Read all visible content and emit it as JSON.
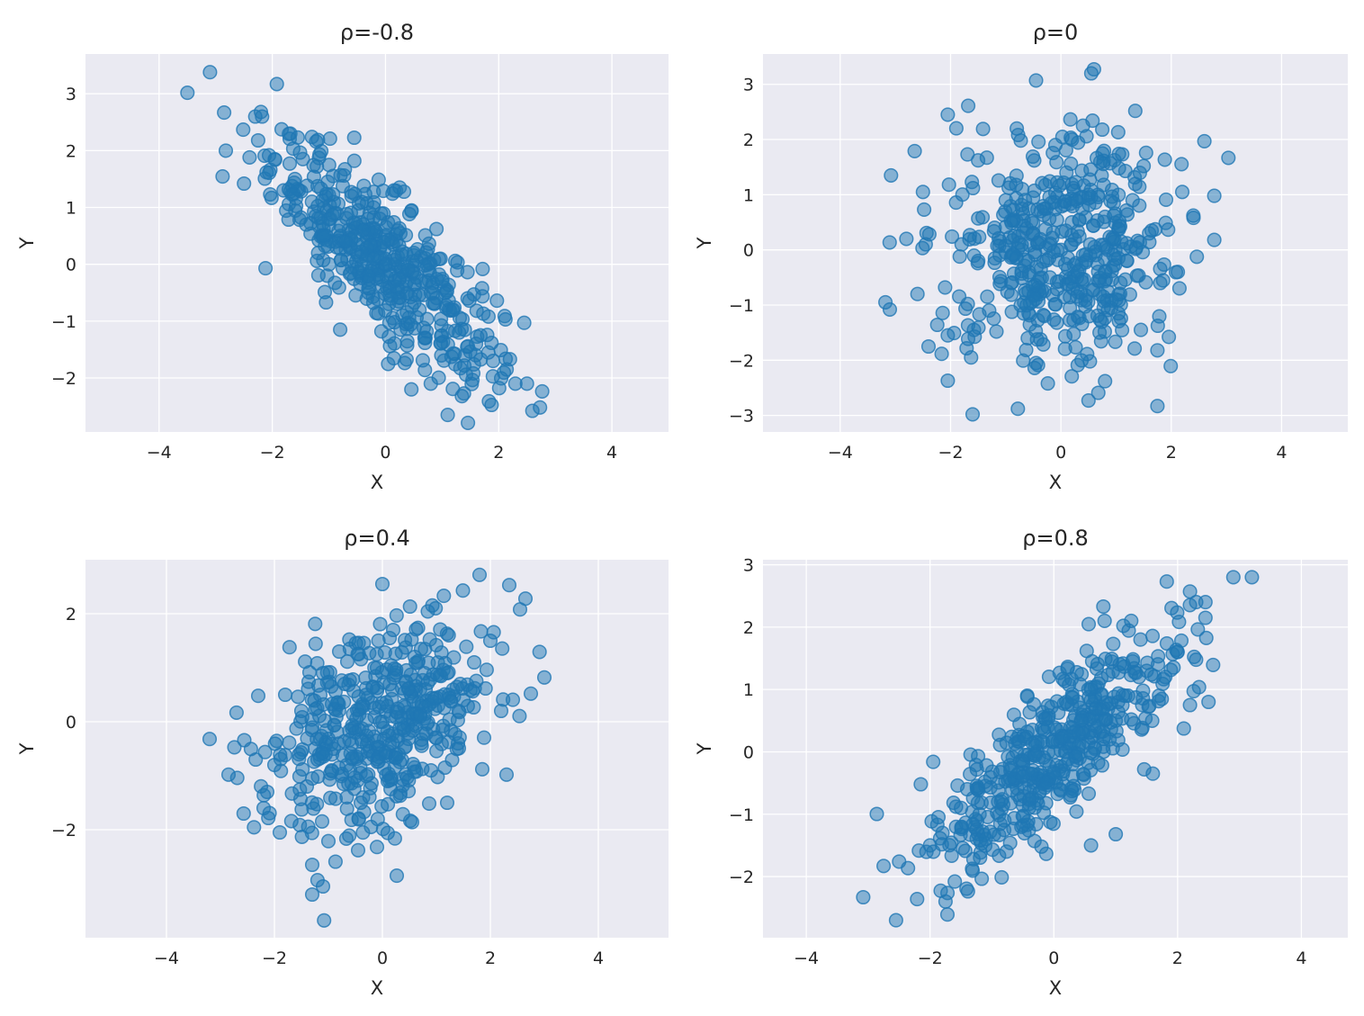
{
  "chart_data": [
    {
      "type": "scatter",
      "title": "ρ=-0.8",
      "xlabel": "X",
      "ylabel": "Y",
      "xlim": [
        -5.3,
        5.0
      ],
      "ylim": [
        -2.95,
        3.7
      ],
      "xticks": [
        -4,
        -2,
        0,
        2,
        4
      ],
      "yticks": [
        -2,
        -1,
        0,
        1,
        2,
        3
      ],
      "grid": true,
      "color": "#1f77b4",
      "rho": -0.8,
      "points": [
        [
          -3.1,
          3.38
        ],
        [
          -2.85,
          2.67
        ],
        [
          -2.2,
          2.68
        ],
        [
          -2.18,
          2.6
        ],
        [
          -2.3,
          2.6
        ],
        [
          -2.82,
          2.0
        ],
        [
          -2.5,
          1.42
        ],
        [
          -2.4,
          1.88
        ],
        [
          -2.25,
          2.18
        ],
        [
          -2.1,
          1.62
        ],
        [
          -1.95,
          1.84
        ],
        [
          -1.68,
          2.3
        ],
        [
          -1.55,
          2.23
        ],
        [
          -1.3,
          2.24
        ],
        [
          -0.98,
          2.21
        ],
        [
          -0.55,
          1.82
        ],
        [
          -2.12,
          -0.07
        ],
        [
          -1.05,
          -0.67
        ],
        [
          -0.8,
          -1.15
        ],
        [
          1.1,
          -2.65
        ],
        [
          1.35,
          -2.32
        ],
        [
          1.55,
          -1.92
        ],
        [
          2.2,
          -1.67
        ],
        [
          2.5,
          -2.1
        ],
        [
          2.73,
          -2.52
        ],
        [
          2.45,
          -1.03
        ],
        [
          2.12,
          -0.97
        ],
        [
          1.82,
          -0.92
        ],
        [
          0.8,
          -2.1
        ],
        [
          0.15,
          1.3
        ],
        [
          0.25,
          1.35
        ],
        [
          0.9,
          0.62
        ],
        [
          -0.5,
          0.35
        ],
        [
          0.2,
          -0.4
        ],
        [
          -0.2,
          0.1
        ],
        [
          0.6,
          -0.8
        ],
        [
          -0.9,
          0.9
        ],
        [
          1.3,
          -1.2
        ],
        [
          -1.3,
          1.1
        ],
        [
          0.4,
          -0.1
        ],
        [
          -0.4,
          0.6
        ],
        [
          0.8,
          -0.5
        ],
        [
          1.6,
          -1.4
        ],
        [
          -1.6,
          1.5
        ],
        [
          0.0,
          0.0
        ],
        [
          -0.7,
          0.4
        ],
        [
          0.3,
          -0.9
        ],
        [
          1.0,
          -0.3
        ],
        [
          -1.1,
          0.5
        ],
        [
          0.5,
          0.2
        ],
        [
          1.9,
          -1.7
        ],
        [
          -1.8,
          1.3
        ],
        [
          0.1,
          -0.6
        ],
        [
          -0.3,
          -0.2
        ],
        [
          1.2,
          -0.8
        ],
        [
          -0.1,
          0.8
        ],
        [
          0.7,
          -1.3
        ],
        [
          -0.6,
          1.2
        ],
        [
          1.45,
          -0.6
        ],
        [
          -1.4,
          0.7
        ]
      ]
    },
    {
      "type": "scatter",
      "title": "ρ=0",
      "xlabel": "X",
      "ylabel": "Y",
      "xlim": [
        -5.4,
        5.2
      ],
      "ylim": [
        -3.3,
        3.55
      ],
      "xticks": [
        -4,
        -2,
        0,
        2,
        4
      ],
      "yticks": [
        -3,
        -2,
        -1,
        0,
        1,
        2,
        3
      ],
      "grid": true,
      "color": "#1f77b4",
      "rho": 0,
      "points": [
        [
          -0.45,
          3.07
        ],
        [
          0.55,
          3.2
        ],
        [
          -1.68,
          2.61
        ],
        [
          -2.05,
          2.45
        ],
        [
          -0.8,
          2.2
        ],
        [
          0.4,
          2.25
        ],
        [
          0.75,
          2.18
        ],
        [
          2.6,
          1.97
        ],
        [
          -3.08,
          1.35
        ],
        [
          -2.5,
          1.05
        ],
        [
          -2.48,
          0.73
        ],
        [
          -2.8,
          0.2
        ],
        [
          -2.45,
          0.1
        ],
        [
          -3.18,
          -0.95
        ],
        [
          -3.1,
          -1.08
        ],
        [
          -2.6,
          -0.8
        ],
        [
          -2.1,
          -0.68
        ],
        [
          -2.05,
          -1.55
        ],
        [
          -2.4,
          -1.75
        ],
        [
          -2.05,
          -2.37
        ],
        [
          -1.6,
          -2.98
        ],
        [
          -0.78,
          -2.88
        ],
        [
          -0.45,
          -2.05
        ],
        [
          0.5,
          -2.73
        ],
        [
          0.8,
          -2.38
        ],
        [
          1.75,
          -2.83
        ],
        [
          1.75,
          -1.82
        ],
        [
          1.45,
          -1.45
        ],
        [
          2.12,
          -0.4
        ],
        [
          2.78,
          0.18
        ],
        [
          2.78,
          0.98
        ],
        [
          2.4,
          0.62
        ],
        [
          2.2,
          1.05
        ],
        [
          1.5,
          1.52
        ],
        [
          0.2,
          2.0
        ],
        [
          -0.1,
          1.9
        ],
        [
          0.0,
          0.0
        ],
        [
          0.3,
          -0.4
        ],
        [
          -0.5,
          0.3
        ],
        [
          0.8,
          0.6
        ],
        [
          -0.9,
          -0.6
        ],
        [
          1.2,
          -0.2
        ],
        [
          -1.2,
          0.4
        ],
        [
          0.5,
          1.0
        ],
        [
          -0.3,
          -1.2
        ],
        [
          1.0,
          -0.9
        ],
        [
          -0.7,
          1.1
        ],
        [
          0.2,
          0.5
        ],
        [
          -1.5,
          -0.2
        ],
        [
          1.6,
          0.3
        ],
        [
          -0.2,
          -0.5
        ],
        [
          0.7,
          -1.5
        ],
        [
          -1.0,
          0.9
        ],
        [
          0.4,
          -0.1
        ],
        [
          1.3,
          0.9
        ],
        [
          -0.6,
          -1.6
        ],
        [
          0.1,
          1.4
        ],
        [
          -1.3,
          -1.1
        ],
        [
          1.8,
          -0.6
        ],
        [
          -1.8,
          0.1
        ]
      ]
    },
    {
      "type": "scatter",
      "title": "ρ=0.4",
      "xlabel": "X",
      "ylabel": "Y",
      "xlim": [
        -5.5,
        5.3
      ],
      "ylim": [
        -4.0,
        3.0
      ],
      "xticks": [
        -4,
        -2,
        0,
        2,
        4
      ],
      "yticks": [
        -2,
        0,
        2
      ],
      "grid": true,
      "color": "#1f77b4",
      "rho": 0.4,
      "points": [
        [
          -3.2,
          -0.32
        ],
        [
          -2.85,
          -0.98
        ],
        [
          -2.57,
          -1.7
        ],
        [
          -2.2,
          -1.6
        ],
        [
          -2.3,
          0.48
        ],
        [
          -1.72,
          1.38
        ],
        [
          -1.9,
          -2.05
        ],
        [
          -1.3,
          -2.65
        ],
        [
          -1.3,
          -3.2
        ],
        [
          -1.1,
          -3.05
        ],
        [
          -1.08,
          -3.68
        ],
        [
          -0.45,
          -2.38
        ],
        [
          -0.1,
          -2.32
        ],
        [
          0.0,
          2.55
        ],
        [
          1.8,
          2.72
        ],
        [
          2.35,
          2.53
        ],
        [
          2.55,
          2.08
        ],
        [
          2.65,
          2.28
        ],
        [
          3.0,
          0.82
        ],
        [
          2.75,
          0.52
        ],
        [
          2.3,
          -0.98
        ],
        [
          1.85,
          -0.88
        ],
        [
          1.2,
          -1.5
        ],
        [
          0.55,
          -1.86
        ],
        [
          0.0,
          0.0
        ],
        [
          0.4,
          0.3
        ],
        [
          -0.5,
          -0.2
        ],
        [
          0.8,
          0.6
        ],
        [
          -0.9,
          -0.5
        ],
        [
          1.2,
          0.9
        ],
        [
          -1.2,
          -0.7
        ],
        [
          0.3,
          -0.6
        ],
        [
          -0.3,
          0.5
        ],
        [
          1.0,
          -0.3
        ],
        [
          -0.7,
          0.7
        ],
        [
          0.6,
          1.2
        ],
        [
          -1.5,
          0.2
        ],
        [
          1.5,
          0.4
        ],
        [
          0.1,
          -1.1
        ],
        [
          -0.1,
          1.0
        ],
        [
          2.0,
          1.5
        ],
        [
          -2.0,
          -0.8
        ],
        [
          0.9,
          -0.9
        ],
        [
          -0.8,
          1.3
        ],
        [
          1.4,
          -0.4
        ],
        [
          -1.4,
          -1.2
        ],
        [
          0.2,
          1.7
        ],
        [
          -0.4,
          -1.5
        ],
        [
          2.2,
          0.2
        ],
        [
          -1.8,
          0.5
        ],
        [
          0.7,
          0.1
        ],
        [
          -0.6,
          -0.9
        ],
        [
          1.7,
          1.1
        ],
        [
          -1.1,
          0.9
        ]
      ]
    },
    {
      "type": "scatter",
      "title": "ρ=0.8",
      "xlabel": "X",
      "ylabel": "Y",
      "xlim": [
        -4.7,
        4.75
      ],
      "ylim": [
        -2.98,
        3.08
      ],
      "xticks": [
        -4,
        -2,
        0,
        2,
        4
      ],
      "yticks": [
        -2,
        -1,
        0,
        1,
        2,
        3
      ],
      "grid": true,
      "color": "#1f77b4",
      "rho": 0.8,
      "points": [
        [
          -3.08,
          -2.33
        ],
        [
          -2.55,
          -2.7
        ],
        [
          -2.75,
          -1.83
        ],
        [
          -2.5,
          -1.76
        ],
        [
          -2.15,
          -0.52
        ],
        [
          -1.95,
          -0.16
        ],
        [
          -1.75,
          -2.4
        ],
        [
          -1.6,
          -2.08
        ],
        [
          -1.3,
          -1.72
        ],
        [
          0.8,
          2.33
        ],
        [
          0.82,
          2.1
        ],
        [
          1.25,
          2.1
        ],
        [
          2.2,
          2.57
        ],
        [
          2.3,
          2.4
        ],
        [
          2.45,
          2.4
        ],
        [
          2.45,
          2.15
        ],
        [
          2.9,
          2.8
        ],
        [
          3.2,
          2.8
        ],
        [
          2.2,
          0.75
        ],
        [
          2.5,
          0.8
        ],
        [
          1.6,
          -0.35
        ],
        [
          1.0,
          -1.32
        ],
        [
          -0.2,
          -1.52
        ],
        [
          0.6,
          -1.5
        ],
        [
          0.0,
          0.0
        ],
        [
          0.4,
          0.3
        ],
        [
          -0.5,
          -0.4
        ],
        [
          0.8,
          0.7
        ],
        [
          -0.9,
          -0.8
        ],
        [
          1.2,
          0.9
        ],
        [
          -1.2,
          -1.0
        ],
        [
          0.3,
          -0.2
        ],
        [
          -0.3,
          0.1
        ],
        [
          1.0,
          0.5
        ],
        [
          -0.7,
          -0.3
        ],
        [
          0.6,
          1.0
        ],
        [
          -1.5,
          -0.9
        ],
        [
          1.5,
          1.3
        ],
        [
          0.1,
          -0.6
        ],
        [
          -0.1,
          0.4
        ],
        [
          2.0,
          1.6
        ],
        [
          -2.0,
          -1.5
        ],
        [
          0.9,
          0.2
        ],
        [
          -0.8,
          -1.1
        ],
        [
          1.4,
          1.8
        ],
        [
          -1.4,
          -0.6
        ],
        [
          0.2,
          0.8
        ],
        [
          -0.4,
          -0.9
        ],
        [
          1.8,
          1.2
        ],
        [
          -1.8,
          -1.3
        ],
        [
          0.7,
          0.4
        ],
        [
          -0.6,
          0.0
        ],
        [
          1.7,
          0.9
        ],
        [
          -1.1,
          -1.4
        ]
      ]
    }
  ]
}
